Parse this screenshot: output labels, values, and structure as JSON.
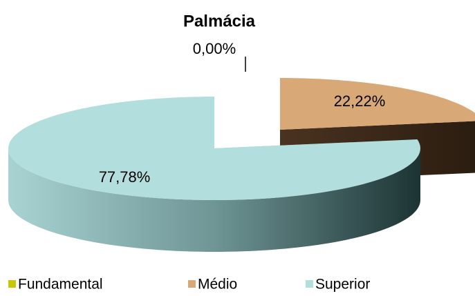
{
  "chart_data": {
    "type": "pie3d",
    "title": "Palmácia",
    "categories": [
      "Fundamental",
      "Médio",
      "Superior"
    ],
    "values": [
      0,
      22.22,
      77.78
    ],
    "value_labels": [
      "0,00%",
      "22,22%",
      "77,78%"
    ],
    "colors": [
      "#c8c800",
      "#d9a877",
      "#b3dede"
    ],
    "legend": "bottom"
  }
}
